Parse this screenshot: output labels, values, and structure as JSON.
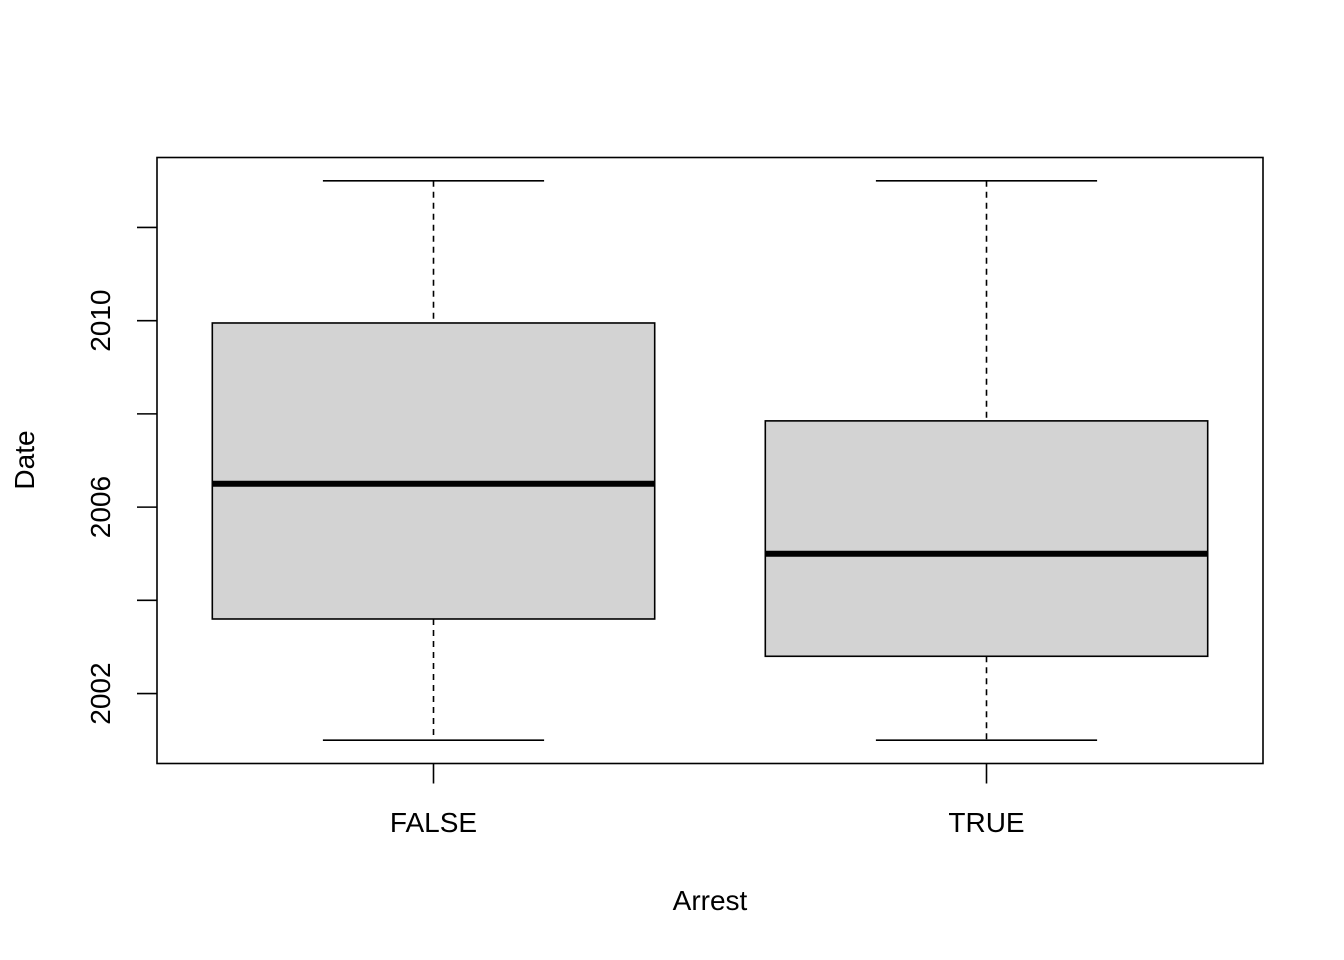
{
  "chart_data": {
    "type": "boxplot",
    "title": "",
    "xlabel": "Arrest",
    "ylabel": "Date",
    "categories": [
      "FALSE",
      "TRUE"
    ],
    "boxes": [
      {
        "category": "FALSE",
        "whisker_low": 2001.0,
        "q1": 2003.6,
        "median": 2006.5,
        "q3": 2009.95,
        "whisker_high": 2013.0
      },
      {
        "category": "TRUE",
        "whisker_low": 2001.0,
        "q1": 2002.8,
        "median": 2005.0,
        "q3": 2007.85,
        "whisker_high": 2013.0
      }
    ],
    "ylim": [
      2000.5,
      2013.5
    ],
    "y_ticks": [
      2002,
      2004,
      2006,
      2008,
      2010,
      2012
    ],
    "y_tick_labels": [
      "2002",
      "",
      "2006",
      "",
      "2010",
      ""
    ],
    "box_fill": "#d3d3d3",
    "grid": false,
    "legend": "none"
  }
}
